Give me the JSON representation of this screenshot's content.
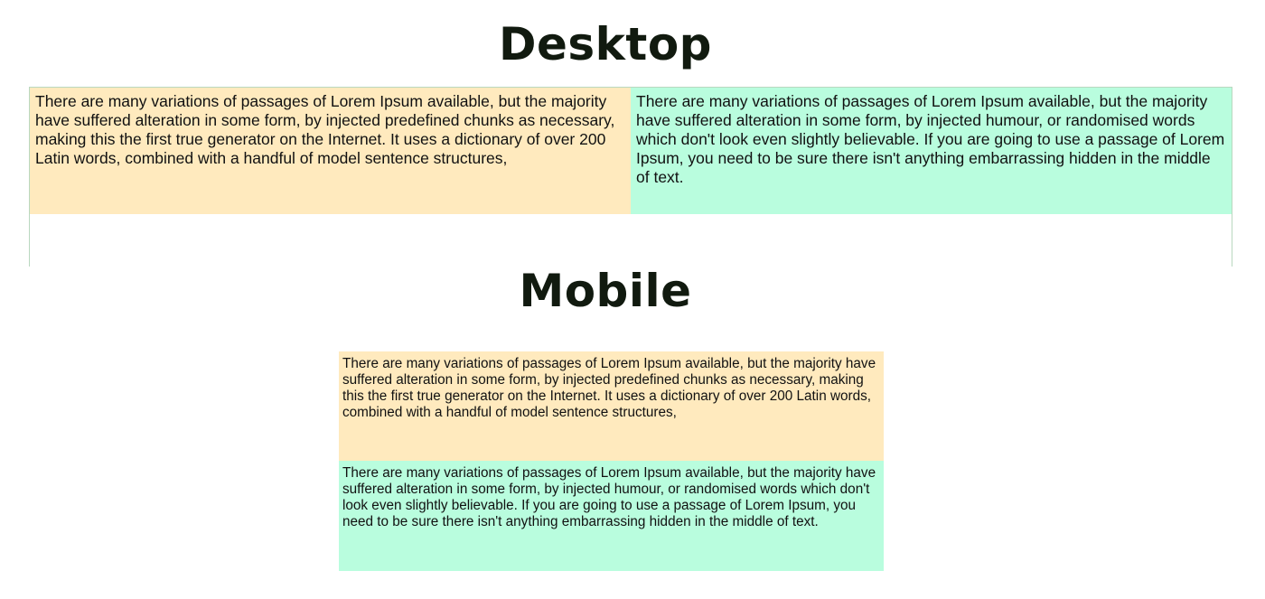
{
  "desktop": {
    "heading": "Desktop",
    "box1_text": "There are many variations of passages of Lorem Ipsum available, but the majority have suffered alteration in some form, by injected predefined chunks as necessary, making this the first true generator on the Internet. It uses a dictionary of over 200 Latin words, combined with a handful of model sentence structures,",
    "box2_text": "There are many variations of passages of Lorem Ipsum available, but the majority have suffered alteration in some form, by injected humour, or randomised words which don't look even slightly believable. If you are going to use a passage of Lorem Ipsum, you need to be sure there isn't anything embarrassing hidden in the middle of text."
  },
  "mobile": {
    "heading": "Mobile",
    "box1_text": "There are many variations of passages of Lorem Ipsum available, but the majority have suffered alteration in some form, by injected predefined chunks as necessary, making this the first true generator on the Internet. It uses a dictionary of over 200 Latin words, combined with a handful of model sentence structures,",
    "box2_text": "There are many variations of passages of Lorem Ipsum available, but the majority have suffered alteration in some form, by injected humour, or randomised words which don't look even slightly believable. If you are going to use a passage of Lorem Ipsum, you need to be sure there isn't anything embarrassing hidden in the middle of text."
  },
  "colors": {
    "box_orange": "#ffeabe",
    "box_green": "#b9fdde",
    "heading_text": "#111a0f"
  }
}
